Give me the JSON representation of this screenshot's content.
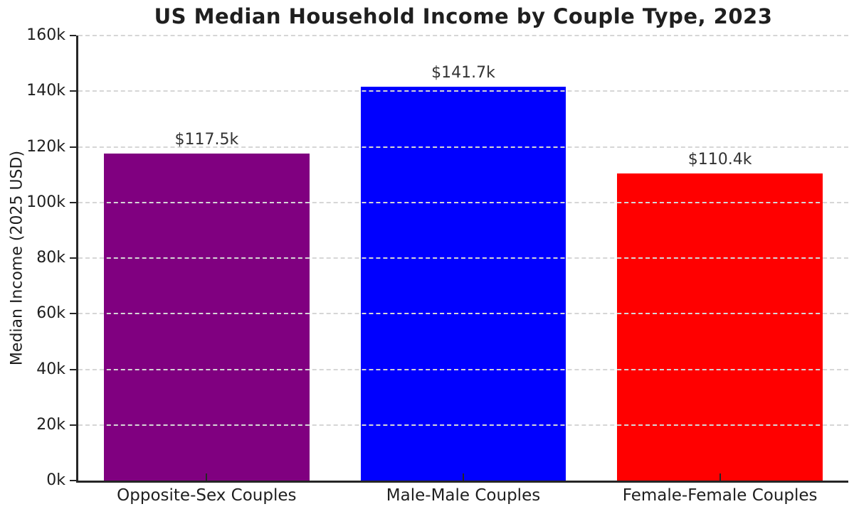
{
  "title": "US Median Household Income by Couple Type, 2023",
  "chart_data": {
    "type": "bar",
    "categories": [
      "Opposite-Sex Couples",
      "Male-Male Couples",
      "Female-Female Couples"
    ],
    "values": [
      117500,
      141700,
      110400
    ],
    "bar_value_labels": [
      "$117.5k",
      "$141.7k",
      "$110.4k"
    ],
    "bar_colors": [
      "#800080",
      "#0000ff",
      "#ff0000"
    ],
    "title": "US Median Household Income by Couple Type, 2023",
    "xlabel": "",
    "ylabel": "Median Income (2025 USD)",
    "ylim": [
      0,
      160000
    ],
    "yticks": [
      0,
      20000,
      40000,
      60000,
      80000,
      100000,
      120000,
      140000,
      160000
    ],
    "ytick_labels": [
      "0k",
      "20k",
      "40k",
      "60k",
      "80k",
      "100k",
      "120k",
      "140k",
      "160k"
    ],
    "grid": "horizontal-dashed",
    "legend": "none",
    "spine_color": "#262626",
    "grid_color": "#d6d6d6",
    "bar_width_fraction": 0.8
  }
}
